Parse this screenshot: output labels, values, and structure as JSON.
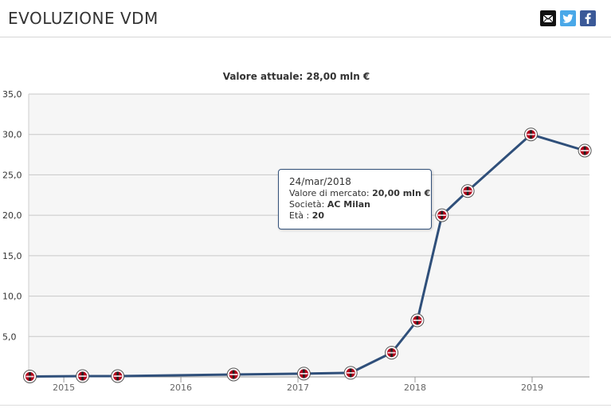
{
  "header": {
    "title": "EVOLUZIONE VDM",
    "share": [
      {
        "icon": "envelope-icon",
        "bg": "#111111"
      },
      {
        "icon": "twitter-icon",
        "bg": "#4aa8e8"
      },
      {
        "icon": "facebook-icon",
        "bg": "#3b5998"
      }
    ]
  },
  "chart_data": {
    "type": "line",
    "title": "Valore attuale: 28,00 mln €",
    "xlabel": "",
    "ylabel": "",
    "x_range": [
      2014.7,
      2019.49
    ],
    "ylim": [
      0,
      35
    ],
    "y_ticks": [
      {
        "value": 5,
        "label": "5,0"
      },
      {
        "value": 10,
        "label": "10,0"
      },
      {
        "value": 15,
        "label": "15,0"
      },
      {
        "value": 20,
        "label": "20,0"
      },
      {
        "value": 25,
        "label": "25,0"
      },
      {
        "value": 30,
        "label": "30,0"
      },
      {
        "value": 35,
        "label": "35,0"
      }
    ],
    "x_ticks": [
      {
        "value": 2015,
        "label": "2015"
      },
      {
        "value": 2016,
        "label": "2016"
      },
      {
        "value": 2017,
        "label": "2017"
      },
      {
        "value": 2018,
        "label": "2018"
      },
      {
        "value": 2019,
        "label": "2019"
      }
    ],
    "grid": true,
    "colors": {
      "line": "#2f4f7a",
      "plot_bg": "#f6f6f6",
      "grid": "#c8c8c8",
      "marker_red": "#b3001b",
      "marker_dark": "#222222"
    },
    "series": [
      {
        "points": [
          {
            "x": 2014.71,
            "y": 0.05
          },
          {
            "x": 2015.16,
            "y": 0.1
          },
          {
            "x": 2015.46,
            "y": 0.1
          },
          {
            "x": 2016.45,
            "y": 0.3
          },
          {
            "x": 2017.05,
            "y": 0.4
          },
          {
            "x": 2017.45,
            "y": 0.5
          },
          {
            "x": 2017.8,
            "y": 3.0
          },
          {
            "x": 2018.02,
            "y": 7.0
          },
          {
            "x": 2018.23,
            "y": 20.0
          },
          {
            "x": 2018.45,
            "y": 23.0
          },
          {
            "x": 2018.99,
            "y": 30.0
          },
          {
            "x": 2019.45,
            "y": 28.0
          }
        ]
      }
    ],
    "tooltip": {
      "date": "24/mar/2018",
      "market_label": "Valore di mercato:",
      "market_value": "20,00 mln €",
      "club_label": "Società:",
      "club_value": "AC Milan",
      "age_label": "Età :",
      "age_value": "20"
    }
  }
}
